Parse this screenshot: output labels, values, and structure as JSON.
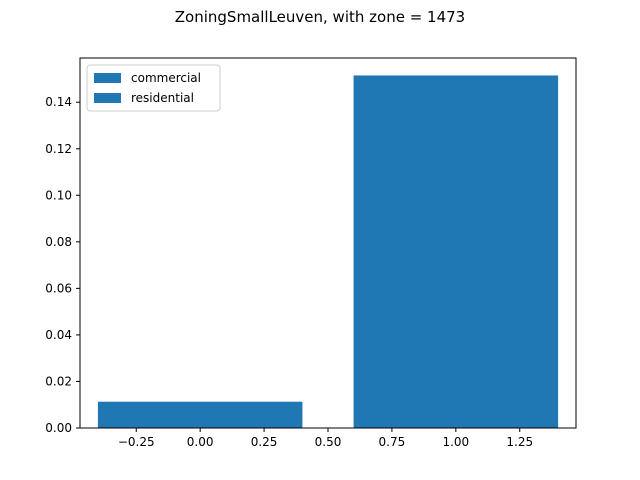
{
  "chart_data": {
    "type": "bar",
    "title": "ZoningSmallLeuven, with zone = 1473",
    "xlabel": "",
    "ylabel": "",
    "x": [
      0,
      1
    ],
    "values": [
      0.0113,
      0.1515
    ],
    "bar_width": 0.8,
    "bar_color": "#1f77b4",
    "xlim": [
      -0.47,
      1.47
    ],
    "ylim": [
      0,
      0.159
    ],
    "xticks": [
      -0.25,
      0.0,
      0.25,
      0.5,
      0.75,
      1.0,
      1.25
    ],
    "xtick_labels": [
      "−0.25",
      "0.00",
      "0.25",
      "0.50",
      "0.75",
      "1.00",
      "1.25"
    ],
    "yticks": [
      0.0,
      0.02,
      0.04,
      0.06,
      0.08,
      0.1,
      0.12,
      0.14
    ],
    "ytick_labels": [
      "0.00",
      "0.02",
      "0.04",
      "0.06",
      "0.08",
      "0.10",
      "0.12",
      "0.14"
    ],
    "legend": {
      "placement": "upper-left",
      "entries": [
        {
          "label": "commercial",
          "color": "#1f77b4"
        },
        {
          "label": "residential",
          "color": "#1f77b4"
        }
      ]
    },
    "grid": false
  }
}
